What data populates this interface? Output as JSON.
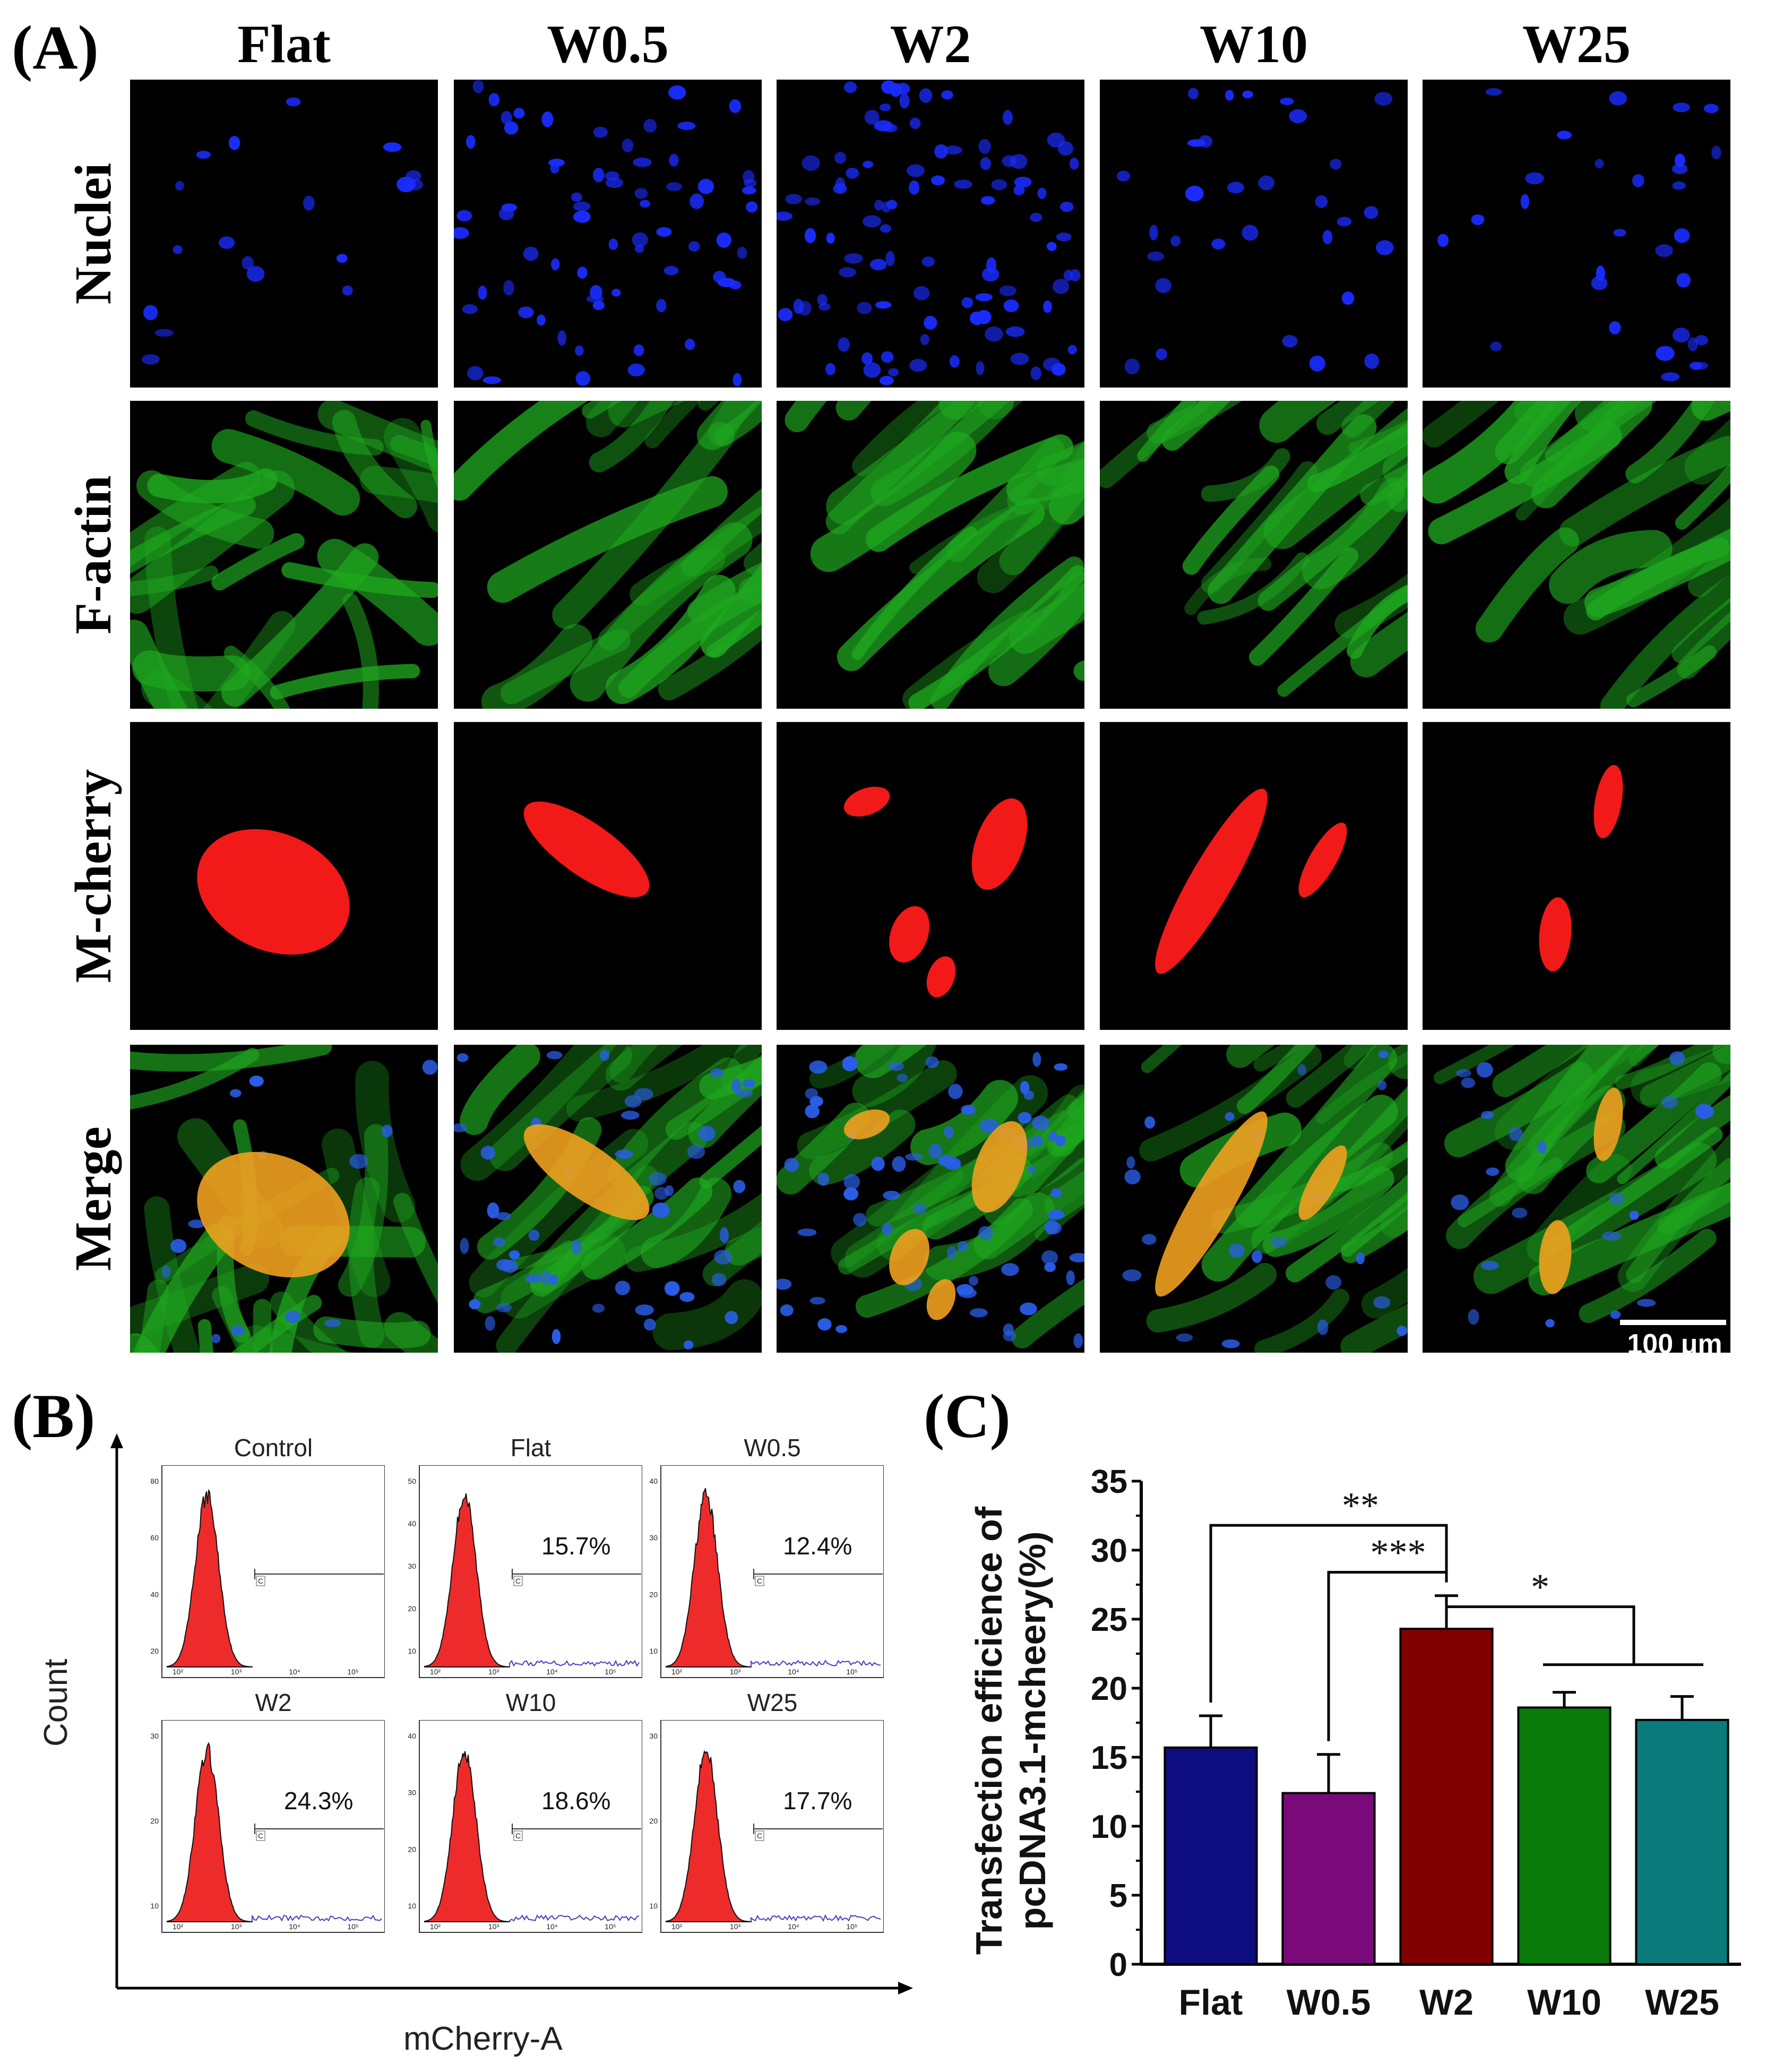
{
  "panels": {
    "a": "(A)",
    "b": "(B)",
    "c": "(C)"
  },
  "panel_a": {
    "columns": [
      "Flat",
      "W0.5",
      "W2",
      "W10",
      "W25"
    ],
    "rows": [
      "Nuclei",
      "F-actin",
      "M-cherry",
      "Merge"
    ],
    "scale_bar": "100 μm"
  },
  "panel_b": {
    "y_label": "Count",
    "x_label": "mCherry-A",
    "gate_label": "C",
    "plots": [
      {
        "title": "Control",
        "percent": "",
        "y_ticks": [
          "80",
          "60",
          "40",
          "20"
        ]
      },
      {
        "title": "Flat",
        "percent": "15.7%",
        "y_ticks": [
          "50",
          "40",
          "30",
          "20",
          "10"
        ]
      },
      {
        "title": "W0.5",
        "percent": "12.4%",
        "y_ticks": [
          "40",
          "30",
          "20",
          "10"
        ]
      },
      {
        "title": "W2",
        "percent": "24.3%",
        "y_ticks": [
          "30",
          "20",
          "10"
        ]
      },
      {
        "title": "W10",
        "percent": "18.6%",
        "y_ticks": [
          "40",
          "30",
          "20",
          "10"
        ]
      },
      {
        "title": "W25",
        "percent": "17.7%",
        "y_ticks": [
          "30",
          "20",
          "10"
        ]
      }
    ],
    "x_ticks": [
      "10²",
      "10³",
      "10⁴",
      "10⁵"
    ]
  },
  "chart_data": {
    "type": "bar",
    "title": "",
    "ylabel": "Transfection efficience of pcDNA3.1-mcheery(%)",
    "xlabel": "",
    "categories": [
      "Flat",
      "W0.5",
      "W2",
      "W10",
      "W25"
    ],
    "values": [
      15.7,
      12.4,
      24.3,
      18.6,
      17.7
    ],
    "errors": [
      2.3,
      2.8,
      2.4,
      1.1,
      1.7
    ],
    "colors": [
      "#0d0d80",
      "#7a0a7a",
      "#800000",
      "#0a7a0a",
      "#0a7a7a"
    ],
    "ylim": [
      0,
      35
    ],
    "y_ticks": [
      "0",
      "5",
      "10",
      "15",
      "20",
      "25",
      "30",
      "35"
    ],
    "significance": [
      {
        "label": "**"
      },
      {
        "label": "***"
      },
      {
        "label": "*"
      }
    ]
  }
}
